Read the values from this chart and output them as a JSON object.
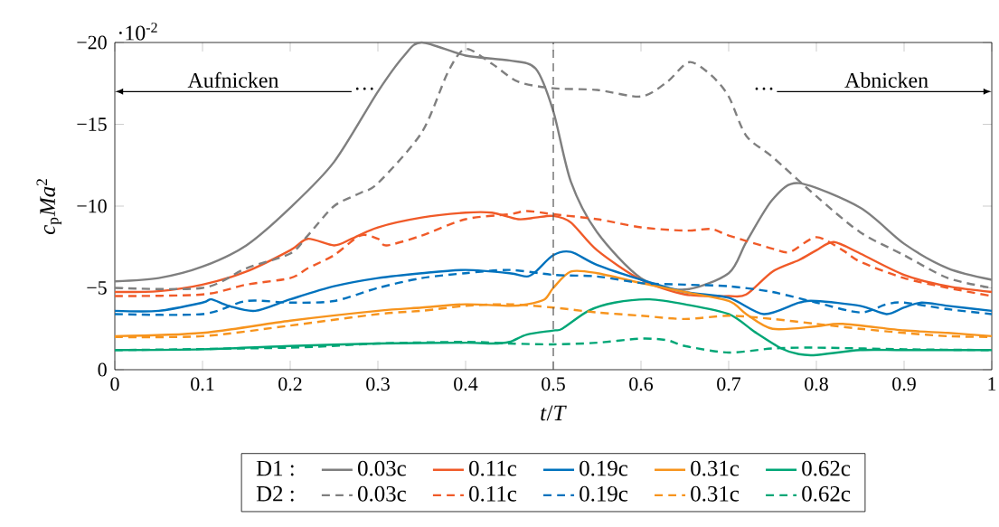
{
  "chart_data": {
    "type": "line",
    "xlabel": "*t*/*T*",
    "ylabel": "*c*$_{p}$*Ma*$^{2}$",
    "xlim": [
      0,
      1
    ],
    "ylim": [
      0,
      -20
    ],
    "xticks": [
      0,
      0.1,
      0.2,
      0.3,
      0.4,
      0.5,
      0.6,
      0.7,
      0.8,
      0.9,
      1
    ],
    "yticks": [
      {
        "value": -20,
        "label": "−20"
      },
      {
        "value": -15,
        "label": "−15"
      },
      {
        "value": -10,
        "label": "−10"
      },
      {
        "value": -5,
        "label": "−5"
      },
      {
        "value": 0,
        "label": "0"
      }
    ],
    "legend": "bottom",
    "marker": "none",
    "ref_lines": [
      {
        "axis": "x",
        "value": 0.5,
        "color": "#555555",
        "line_style": "dashed"
      }
    ],
    "annotations": [
      "·10$^{-2}$",
      "Aufnicken",
      "…",
      "Abnicken",
      "…",
      "D1 :",
      "D2 :"
    ],
    "series": [
      {
        "name": "0.03c",
        "color": "#7f7f7f",
        "line_style": "solid",
        "x": [
          0,
          0.05,
          0.1,
          0.15,
          0.2,
          0.25,
          0.3,
          0.33,
          0.35,
          0.4,
          0.45,
          0.48,
          0.5,
          0.52,
          0.55,
          0.6,
          0.65,
          0.7,
          0.72,
          0.75,
          0.78,
          0.85,
          0.9,
          0.95,
          1
        ],
        "values": [
          -5.4,
          -5.6,
          -6.3,
          -7.6,
          -9.9,
          -12.7,
          -17.0,
          -19.2,
          -20.0,
          -19.2,
          -18.9,
          -18.4,
          -15.8,
          -11.5,
          -8.4,
          -5.6,
          -4.9,
          -5.9,
          -7.8,
          -10.4,
          -11.4,
          -9.9,
          -7.7,
          -6.2,
          -5.5
        ]
      },
      {
        "name": "0.11c",
        "color": "#f05a28",
        "line_style": "solid",
        "x": [
          0,
          0.05,
          0.1,
          0.15,
          0.2,
          0.22,
          0.25,
          0.27,
          0.3,
          0.35,
          0.4,
          0.43,
          0.46,
          0.48,
          0.5,
          0.52,
          0.55,
          0.6,
          0.65,
          0.7,
          0.72,
          0.75,
          0.78,
          0.8,
          0.82,
          0.85,
          0.9,
          0.95,
          1
        ],
        "values": [
          -4.75,
          -4.8,
          -5.2,
          -6.0,
          -7.3,
          -8.0,
          -7.6,
          -8.0,
          -8.7,
          -9.3,
          -9.6,
          -9.6,
          -9.2,
          -9.3,
          -9.4,
          -9.0,
          -7.3,
          -5.5,
          -4.6,
          -4.5,
          -4.6,
          -6.0,
          -6.7,
          -7.3,
          -7.8,
          -7.1,
          -5.8,
          -5.1,
          -4.75
        ]
      },
      {
        "name": "0.19c",
        "color": "#0072bd",
        "line_style": "solid",
        "x": [
          0,
          0.05,
          0.1,
          0.11,
          0.13,
          0.16,
          0.2,
          0.25,
          0.3,
          0.35,
          0.4,
          0.45,
          0.47,
          0.48,
          0.5,
          0.52,
          0.55,
          0.6,
          0.65,
          0.7,
          0.74,
          0.78,
          0.8,
          0.85,
          0.88,
          0.9,
          0.92,
          0.95,
          1
        ],
        "values": [
          -3.6,
          -3.6,
          -4.1,
          -4.3,
          -3.9,
          -3.6,
          -4.3,
          -5.1,
          -5.6,
          -5.9,
          -6.1,
          -5.9,
          -5.7,
          -6.0,
          -7.0,
          -7.2,
          -6.4,
          -5.5,
          -4.75,
          -4.4,
          -3.4,
          -4.1,
          -4.2,
          -3.9,
          -3.4,
          -3.8,
          -4.1,
          -3.9,
          -3.6
        ]
      },
      {
        "name": "0.31c",
        "color": "#f7941d",
        "line_style": "solid",
        "x": [
          0,
          0.1,
          0.2,
          0.3,
          0.35,
          0.4,
          0.45,
          0.47,
          0.49,
          0.5,
          0.52,
          0.55,
          0.6,
          0.65,
          0.7,
          0.72,
          0.75,
          0.8,
          0.83,
          0.9,
          0.95,
          1
        ],
        "values": [
          -2.05,
          -2.25,
          -3.0,
          -3.6,
          -3.8,
          -4.0,
          -3.9,
          -4.0,
          -4.3,
          -5.0,
          -6.0,
          -5.9,
          -5.3,
          -4.75,
          -4.2,
          -3.4,
          -2.5,
          -2.65,
          -2.8,
          -2.4,
          -2.25,
          -2.05
        ]
      },
      {
        "name": "0.62c",
        "color": "#00a676",
        "line_style": "solid",
        "x": [
          0,
          0.1,
          0.2,
          0.3,
          0.4,
          0.43,
          0.45,
          0.47,
          0.5,
          0.51,
          0.54,
          0.57,
          0.61,
          0.65,
          0.7,
          0.73,
          0.76,
          0.78,
          0.8,
          0.85,
          0.9,
          1
        ],
        "values": [
          -1.2,
          -1.25,
          -1.45,
          -1.6,
          -1.65,
          -1.6,
          -1.7,
          -2.15,
          -2.4,
          -2.5,
          -3.6,
          -4.1,
          -4.3,
          -4.0,
          -3.4,
          -2.3,
          -1.3,
          -0.95,
          -0.9,
          -1.2,
          -1.2,
          -1.2
        ]
      },
      {
        "name": "0.03c",
        "color": "#7f7f7f",
        "line_style": "dashed",
        "x": [
          0,
          0.1,
          0.15,
          0.2,
          0.22,
          0.25,
          0.28,
          0.3,
          0.35,
          0.38,
          0.4,
          0.43,
          0.46,
          0.5,
          0.55,
          0.6,
          0.63,
          0.655,
          0.68,
          0.7,
          0.72,
          0.75,
          0.8,
          0.85,
          0.9,
          0.95,
          1
        ],
        "values": [
          -5.0,
          -5.0,
          -6.2,
          -7.1,
          -8.2,
          -10.0,
          -10.8,
          -11.4,
          -14.5,
          -18.2,
          -19.6,
          -18.7,
          -17.6,
          -17.2,
          -17.1,
          -16.7,
          -17.6,
          -18.8,
          -18.0,
          -16.7,
          -14.3,
          -13.0,
          -10.6,
          -8.4,
          -7.0,
          -5.6,
          -5.0
        ]
      },
      {
        "name": "0.11c",
        "color": "#f05a28",
        "line_style": "dashed",
        "x": [
          0,
          0.1,
          0.15,
          0.2,
          0.22,
          0.25,
          0.28,
          0.3,
          0.31,
          0.35,
          0.4,
          0.45,
          0.47,
          0.5,
          0.55,
          0.6,
          0.65,
          0.68,
          0.7,
          0.75,
          0.77,
          0.8,
          0.83,
          0.85,
          0.9,
          0.95,
          1
        ],
        "values": [
          -4.5,
          -4.6,
          -5.2,
          -5.6,
          -6.2,
          -7.0,
          -8.2,
          -8.0,
          -7.6,
          -8.2,
          -9.2,
          -9.5,
          -9.7,
          -9.5,
          -9.2,
          -8.7,
          -8.5,
          -8.6,
          -8.2,
          -7.4,
          -7.2,
          -8.1,
          -7.3,
          -6.6,
          -5.6,
          -5.0,
          -4.5
        ]
      },
      {
        "name": "0.19c",
        "color": "#0072bd",
        "line_style": "dashed",
        "x": [
          0,
          0.1,
          0.15,
          0.2,
          0.25,
          0.3,
          0.35,
          0.4,
          0.45,
          0.5,
          0.55,
          0.6,
          0.65,
          0.7,
          0.75,
          0.8,
          0.85,
          0.88,
          0.9,
          0.95,
          1
        ],
        "values": [
          -3.4,
          -3.4,
          -4.2,
          -4.1,
          -4.2,
          -5.0,
          -5.6,
          -5.9,
          -6.1,
          -5.8,
          -5.7,
          -5.3,
          -5.2,
          -5.1,
          -4.75,
          -4.1,
          -3.5,
          -4.0,
          -4.1,
          -3.7,
          -3.4
        ]
      },
      {
        "name": "0.31c",
        "color": "#f7941d",
        "line_style": "dashed",
        "x": [
          0,
          0.1,
          0.2,
          0.3,
          0.35,
          0.4,
          0.45,
          0.5,
          0.55,
          0.6,
          0.65,
          0.7,
          0.75,
          0.8,
          0.85,
          0.9,
          0.95,
          1
        ],
        "values": [
          -2.0,
          -2.05,
          -2.7,
          -3.4,
          -3.6,
          -3.9,
          -4.0,
          -3.8,
          -3.5,
          -3.3,
          -3.1,
          -3.3,
          -3.1,
          -2.8,
          -2.5,
          -2.25,
          -2.05,
          -2.0
        ]
      },
      {
        "name": "0.62c",
        "color": "#00a676",
        "line_style": "dashed",
        "x": [
          0,
          0.2,
          0.3,
          0.4,
          0.45,
          0.5,
          0.55,
          0.6,
          0.63,
          0.65,
          0.7,
          0.75,
          0.8,
          0.9,
          1
        ],
        "values": [
          -1.2,
          -1.35,
          -1.6,
          -1.7,
          -1.6,
          -1.55,
          -1.65,
          -1.9,
          -1.8,
          -1.45,
          -1.05,
          -1.3,
          -1.35,
          -1.25,
          -1.2
        ]
      }
    ]
  }
}
